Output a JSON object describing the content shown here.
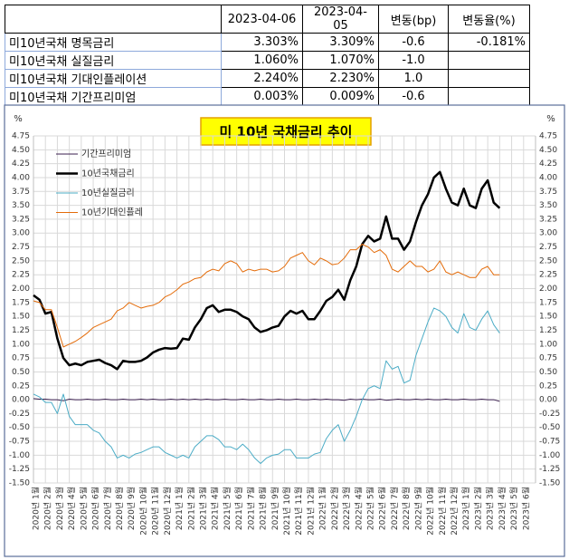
{
  "table": {
    "header": [
      null,
      "2023-04-06",
      "2023-04-05",
      "변동(bp)",
      "변동율(%)"
    ],
    "rows": [
      [
        "미10년국채 명목금리",
        "3.303%",
        "3.309%",
        "-0.6",
        "-0.181%"
      ],
      [
        "미10년국채 실질금리",
        "1.060%",
        "1.070%",
        "-1.0",
        null
      ],
      [
        "미10년국채 기대인플레이션",
        "2.240%",
        "2.230%",
        "1.0",
        null
      ],
      [
        "미10년국채 기간프리미엄",
        "0.003%",
        "0.009%",
        "-0.6",
        null
      ]
    ]
  },
  "chart_data": {
    "type": "line",
    "title": "미 10년  국채금리  추이",
    "y_label": "%",
    "y2_label": "%",
    "categories": [
      "2020년 1월",
      null,
      "2020년 2월",
      null,
      "2020년 3월",
      null,
      "2020년 4월",
      null,
      "2020년 5월",
      null,
      "2020년 6월",
      null,
      "2020년 7월",
      null,
      "2020년 8월",
      null,
      "2020년 9월",
      null,
      "2020년 10월",
      null,
      "2020년 11월",
      null,
      "2020년 12월",
      null,
      "2021년 1월",
      null,
      "2021년 2월",
      null,
      "2021년 3월",
      null,
      "2021년 4월",
      null,
      "2021년 5월",
      null,
      "2021년 6월",
      null,
      "2021년 7월",
      null,
      "2021년 8월",
      null,
      "2021년 9월",
      null,
      "2021년 10월",
      null,
      "2021년 11월",
      null,
      "2021년 12월",
      null,
      "2022년 1월",
      null,
      "2022년 2월",
      null,
      "2022년 3월",
      null,
      "2022년 4월",
      null,
      "2022년 5월",
      null,
      "2022년 6월",
      null,
      "2022년 7월",
      null,
      "2022년 8월",
      null,
      "2022년 9월",
      null,
      "2022년 10월",
      null,
      "2022년 11월",
      null,
      "2022년 12월",
      null,
      "2023년 1월",
      null,
      "2023년 2월",
      null,
      "2023년 3월",
      null,
      "2023년 4월",
      null,
      "2023년 5월",
      null,
      "2023년 6월",
      null
    ],
    "series": [
      {
        "name": "기간프리미엄",
        "color": "#3b1f4f",
        "width": 1,
        "values": [
          0.02,
          0.01,
          0.01,
          0.0,
          0.0,
          -0.02,
          0.01,
          0.0,
          0.0,
          0.01,
          0.0,
          0.0,
          0.01,
          0.0,
          0.0,
          0.01,
          0.0,
          0.0,
          0.01,
          0.0,
          0.01,
          0.0,
          0.0,
          0.01,
          0.0,
          0.01,
          0.0,
          0.01,
          0.0,
          0.01,
          0.0,
          0.0,
          0.01,
          0.0,
          0.0,
          0.01,
          0.0,
          0.0,
          0.01,
          0.0,
          0.0,
          0.01,
          0.0,
          0.0,
          0.01,
          0.0,
          0.0,
          0.01,
          0.0,
          0.01,
          0.0,
          0.0,
          -0.01,
          0.01,
          0.0,
          0.01,
          0.0,
          0.0,
          0.01,
          -0.01,
          0.0,
          0.01,
          0.0,
          0.0,
          0.01,
          0.0,
          0.01,
          0.0,
          0.0,
          0.01,
          0.0,
          0.0,
          0.01,
          0.0,
          0.0,
          0.01,
          0.0,
          0.0,
          -0.03,
          null,
          null,
          null,
          null,
          null
        ]
      },
      {
        "name": "10년국채금리",
        "color": "#000000",
        "width": 2.5,
        "values": [
          1.88,
          1.8,
          1.55,
          1.58,
          1.1,
          0.75,
          0.62,
          0.65,
          0.62,
          0.68,
          0.7,
          0.72,
          0.66,
          0.62,
          0.55,
          0.7,
          0.68,
          0.68,
          0.7,
          0.76,
          0.85,
          0.9,
          0.93,
          0.92,
          0.93,
          1.1,
          1.08,
          1.3,
          1.45,
          1.65,
          1.7,
          1.58,
          1.62,
          1.62,
          1.58,
          1.5,
          1.45,
          1.3,
          1.22,
          1.25,
          1.3,
          1.33,
          1.5,
          1.6,
          1.55,
          1.6,
          1.45,
          1.45,
          1.6,
          1.78,
          1.85,
          1.98,
          1.8,
          2.15,
          2.4,
          2.8,
          2.95,
          2.85,
          2.9,
          3.3,
          2.9,
          2.9,
          2.7,
          2.85,
          3.2,
          3.5,
          3.7,
          4.0,
          4.1,
          3.8,
          3.55,
          3.5,
          3.8,
          3.5,
          3.45,
          3.8,
          3.95,
          3.55,
          3.45,
          null,
          null,
          null,
          null,
          null
        ]
      },
      {
        "name": "10년실질금리",
        "color": "#4bacc6",
        "width": 1,
        "values": [
          0.1,
          0.05,
          -0.05,
          -0.05,
          -0.25,
          0.1,
          -0.3,
          -0.45,
          -0.45,
          -0.45,
          -0.55,
          -0.6,
          -0.75,
          -0.85,
          -1.05,
          -1.0,
          -1.05,
          -0.98,
          -0.95,
          -0.9,
          -0.85,
          -0.85,
          -0.95,
          -1.0,
          -1.05,
          -1.0,
          -1.05,
          -0.85,
          -0.75,
          -0.65,
          -0.65,
          -0.72,
          -0.85,
          -0.85,
          -0.9,
          -0.8,
          -0.9,
          -1.05,
          -1.15,
          -1.05,
          -1.0,
          -0.98,
          -0.9,
          -0.9,
          -1.05,
          -1.05,
          -1.05,
          -0.98,
          -0.95,
          -0.7,
          -0.55,
          -0.45,
          -0.75,
          -0.55,
          -0.3,
          0.0,
          0.2,
          0.25,
          0.2,
          0.7,
          0.55,
          0.6,
          0.3,
          0.35,
          0.8,
          1.1,
          1.4,
          1.65,
          1.6,
          1.5,
          1.3,
          1.2,
          1.55,
          1.3,
          1.25,
          1.45,
          1.6,
          1.35,
          1.2,
          null,
          null,
          null,
          null,
          null
        ]
      },
      {
        "name": "10년기대인플레",
        "color": "#e46c0a",
        "width": 1,
        "values": [
          1.78,
          1.75,
          1.62,
          1.62,
          1.3,
          0.95,
          1.0,
          1.05,
          1.12,
          1.2,
          1.3,
          1.35,
          1.4,
          1.45,
          1.6,
          1.65,
          1.75,
          1.7,
          1.65,
          1.68,
          1.7,
          1.75,
          1.85,
          1.9,
          1.98,
          2.08,
          2.12,
          2.18,
          2.2,
          2.3,
          2.35,
          2.32,
          2.45,
          2.5,
          2.45,
          2.3,
          2.35,
          2.32,
          2.35,
          2.35,
          2.3,
          2.32,
          2.4,
          2.55,
          2.6,
          2.65,
          2.5,
          2.43,
          2.55,
          2.5,
          2.43,
          2.45,
          2.55,
          2.7,
          2.7,
          2.8,
          2.75,
          2.65,
          2.7,
          2.6,
          2.35,
          2.3,
          2.4,
          2.5,
          2.4,
          2.4,
          2.3,
          2.35,
          2.5,
          2.3,
          2.25,
          2.3,
          2.25,
          2.2,
          2.2,
          2.35,
          2.4,
          2.25,
          2.25,
          null,
          null,
          null,
          null,
          null
        ]
      }
    ],
    "ylim": [
      -1.5,
      4.75
    ],
    "yticks": [
      {
        "value": -1.5,
        "label": "-1.50"
      },
      -1.25,
      {
        "value": -1,
        "label": "-1.00"
      },
      -0.75,
      {
        "value": -0.5,
        "label": "-0.50"
      },
      -0.25,
      {
        "value": 0,
        "label": "0.00"
      },
      0.25,
      {
        "value": 0.5,
        "label": "0.50"
      },
      0.75,
      {
        "value": 1,
        "label": "1.00"
      },
      1.25,
      {
        "value": 1.5,
        "label": "1.50"
      },
      1.75,
      {
        "value": 2,
        "label": "2.00"
      },
      2.25,
      {
        "value": 2.5,
        "label": "2.50"
      },
      2.75,
      {
        "value": 3,
        "label": "3.00"
      },
      3.25,
      {
        "value": 3.5,
        "label": "3.50"
      },
      3.75,
      {
        "value": 4,
        "label": "4.00"
      },
      4.25,
      {
        "value": 4.5,
        "label": "4.50"
      },
      4.75
    ],
    "y2lim": [
      -1.5,
      4.75
    ],
    "y2ticks": [
      {
        "value": -1.5,
        "label": "-1.50"
      },
      -1.25,
      {
        "value": -1,
        "label": "-1.00"
      },
      -0.75,
      {
        "value": -0.5,
        "label": "-0.50"
      },
      -0.25,
      {
        "value": 0,
        "label": "0.00"
      },
      0.25,
      {
        "value": 0.5,
        "label": "0.50"
      },
      0.75,
      {
        "value": 1,
        "label": "1.00"
      },
      1.25,
      {
        "value": 1.5,
        "label": "1.50"
      },
      1.75,
      {
        "value": 2,
        "label": "2.00"
      },
      2.25,
      {
        "value": 2.5,
        "label": "2.50"
      },
      2.75,
      {
        "value": 3,
        "label": "3.00"
      },
      3.25,
      {
        "value": 3.5,
        "label": "3.50"
      },
      3.75,
      {
        "value": 4,
        "label": "4.00"
      },
      4.25,
      {
        "value": 4.5,
        "label": "4.50"
      },
      4.75
    ],
    "grid": true,
    "legend": "upper left"
  }
}
